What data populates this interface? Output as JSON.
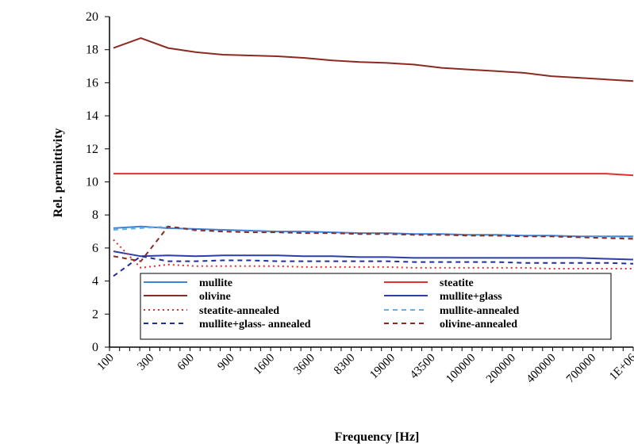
{
  "chart_data": {
    "type": "line",
    "xlabel": "Frequency [Hz]",
    "ylabel": "Rel. permittivity",
    "ylim": [
      0,
      20
    ],
    "yticks": [
      0,
      2,
      4,
      6,
      8,
      10,
      12,
      14,
      16,
      18,
      20
    ],
    "x_tick_labels": [
      "100",
      "300",
      "600",
      "900",
      "1600",
      "3600",
      "8300",
      "19000",
      "43500",
      "100000",
      "200000",
      "400000",
      "700000",
      "1E+06"
    ],
    "grid": false,
    "legend_position": "bottom-center",
    "series": [
      {
        "name": "mullite",
        "color": "#3f83d6",
        "dash": "solid",
        "values": [
          7.2,
          7.3,
          7.2,
          7.15,
          7.1,
          7.05,
          7.0,
          7.0,
          6.95,
          6.9,
          6.9,
          6.85,
          6.85,
          6.8,
          6.8,
          6.75,
          6.75,
          6.7,
          6.7,
          6.7
        ]
      },
      {
        "name": "steatite",
        "color": "#e03030",
        "dash": "solid",
        "values": [
          10.5,
          10.5,
          10.5,
          10.5,
          10.5,
          10.5,
          10.5,
          10.5,
          10.5,
          10.5,
          10.5,
          10.5,
          10.5,
          10.5,
          10.5,
          10.5,
          10.5,
          10.5,
          10.5,
          10.4
        ]
      },
      {
        "name": "olivine",
        "color": "#8b2a22",
        "dash": "solid",
        "values": [
          18.1,
          18.7,
          18.1,
          17.85,
          17.7,
          17.65,
          17.6,
          17.5,
          17.35,
          17.25,
          17.2,
          17.1,
          16.9,
          16.8,
          16.7,
          16.6,
          16.4,
          16.3,
          16.2,
          16.1
        ]
      },
      {
        "name": "mullite+glass",
        "color": "#2c3ea8",
        "dash": "solid",
        "values": [
          5.8,
          5.5,
          5.55,
          5.5,
          5.55,
          5.55,
          5.55,
          5.5,
          5.5,
          5.45,
          5.45,
          5.4,
          5.4,
          5.4,
          5.4,
          5.4,
          5.4,
          5.4,
          5.35,
          5.3
        ]
      },
      {
        "name": "steatite-annealed",
        "color": "#e03030",
        "dash": "dotted",
        "values": [
          6.5,
          4.8,
          5.0,
          4.9,
          4.9,
          4.9,
          4.9,
          4.85,
          4.85,
          4.85,
          4.85,
          4.8,
          4.8,
          4.8,
          4.8,
          4.8,
          4.75,
          4.75,
          4.75,
          4.75
        ]
      },
      {
        "name": "mullite-annealed",
        "color": "#5fb4e6",
        "dash": "dashed",
        "values": [
          7.1,
          7.2,
          7.3,
          7.05,
          7.0,
          7.0,
          6.95,
          6.9,
          6.9,
          6.85,
          6.85,
          6.8,
          6.8,
          6.75,
          6.75,
          6.7,
          6.7,
          6.65,
          6.65,
          6.6
        ]
      },
      {
        "name": "mullite+glass- annealed",
        "color": "#1f2fa0",
        "dash": "dashed",
        "values": [
          4.3,
          5.5,
          5.2,
          5.2,
          5.25,
          5.25,
          5.2,
          5.2,
          5.2,
          5.2,
          5.2,
          5.15,
          5.15,
          5.15,
          5.15,
          5.1,
          5.1,
          5.1,
          5.1,
          5.05
        ]
      },
      {
        "name": "olivine-annealed",
        "color": "#8b2a22",
        "dash": "dashed",
        "values": [
          5.5,
          5.2,
          7.3,
          7.1,
          7.0,
          6.95,
          6.95,
          6.9,
          6.9,
          6.85,
          6.85,
          6.8,
          6.8,
          6.75,
          6.75,
          6.7,
          6.7,
          6.65,
          6.6,
          6.55
        ]
      }
    ]
  }
}
